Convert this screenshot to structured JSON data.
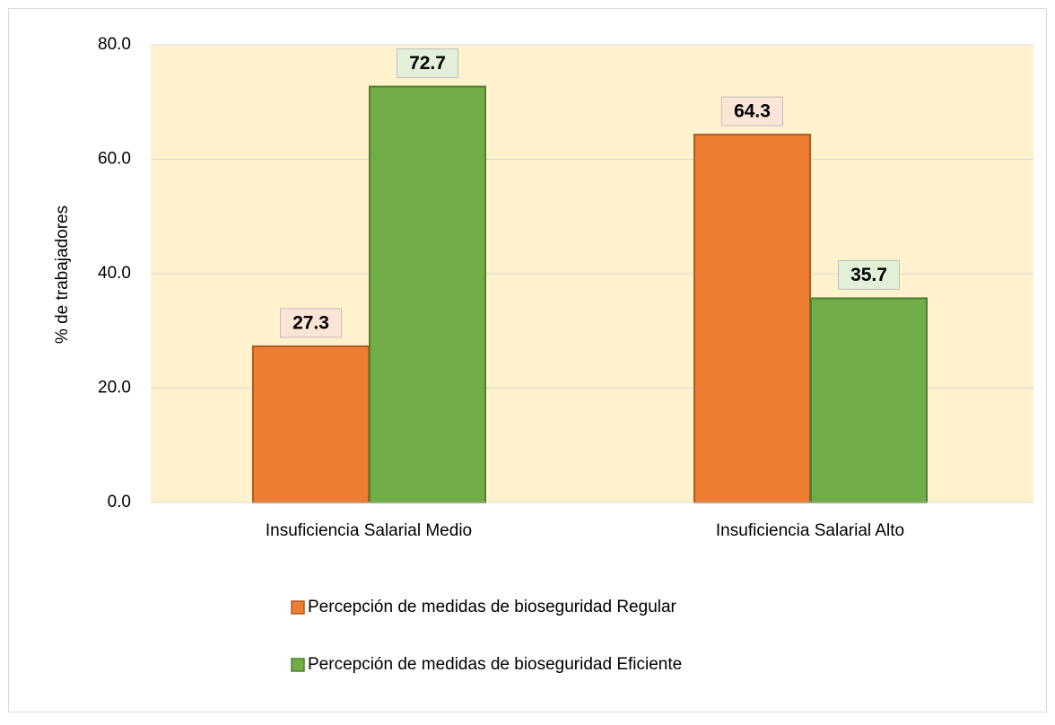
{
  "chart_data": {
    "type": "bar",
    "ylabel": "% de trabajadores",
    "categories": [
      "Insuficiencia Salarial Medio",
      "Insuficiencia Salarial Alto"
    ],
    "series": [
      {
        "name": "Percepción de medidas de bioseguridad Regular",
        "color": "#ed7d31",
        "edgecolor": "#ae5a21",
        "labelfill": "#fbe5d6",
        "values": [
          27.3,
          64.3
        ]
      },
      {
        "name": "Percepción de medidas de bioseguridad Eficiente",
        "color": "#70ad47",
        "edgecolor": "#507e32",
        "labelfill": "#e2f0d9",
        "values": [
          72.7,
          35.7
        ]
      }
    ],
    "ylim": [
      0,
      80
    ],
    "yticks": [
      {
        "value": 0,
        "label": "0.0"
      },
      {
        "value": 20,
        "label": "20.0"
      },
      {
        "value": 40,
        "label": "40.0"
      },
      {
        "value": 60,
        "label": "60.0"
      },
      {
        "value": 80,
        "label": "80.0"
      }
    ],
    "grid": true,
    "plot_background": "#fff2cc",
    "legend": "bottom"
  }
}
